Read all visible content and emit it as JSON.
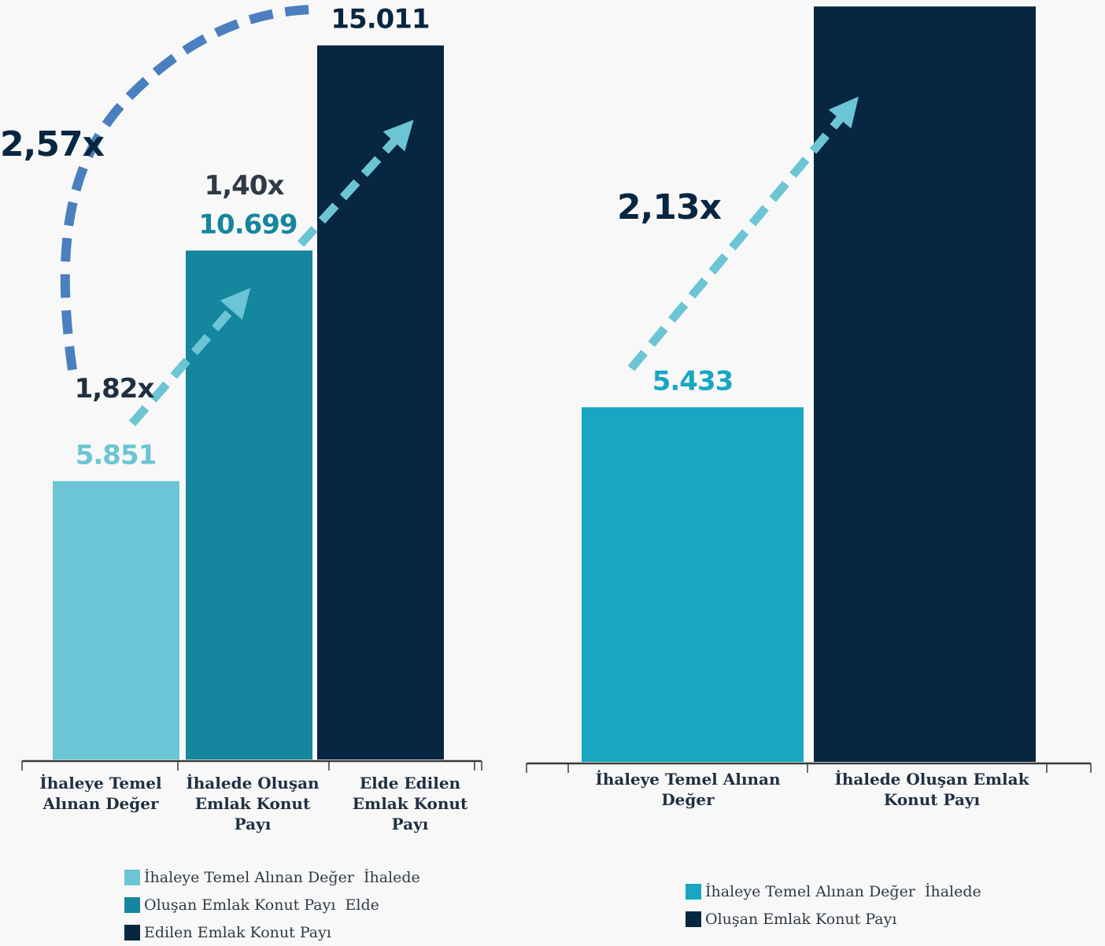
{
  "chart_data": [
    {
      "type": "bar",
      "categories": [
        [
          "İhaleye Temel",
          "Alınan Değer"
        ],
        [
          "İhalede Oluşan",
          "Emlak Konut",
          "Payı"
        ],
        [
          "Elde Edilen",
          "Emlak Konut",
          "Payı"
        ]
      ],
      "values": [
        5851,
        10699,
        15011
      ],
      "value_labels": [
        "5.851",
        "10.699",
        "15.011"
      ],
      "colors": [
        "#6bc5d4",
        "#14869e",
        "#072641"
      ],
      "label_colors": [
        "#6bc5d4",
        "#14869e",
        "#072641"
      ],
      "annotations": [
        {
          "text": "1,82x",
          "from": 0,
          "to": 1,
          "style": "dashed-arrow",
          "color": "#1f2f42"
        },
        {
          "text": "1,40x",
          "from": 1,
          "to": 2,
          "style": "dashed-arrow",
          "color": "#2f3a45"
        },
        {
          "text": "2,57x",
          "from": 0,
          "to": 2,
          "style": "dashed-arc",
          "color": "#072641"
        }
      ],
      "arrow_color": "#6bc5d4",
      "arc_color": "#4a7fc0",
      "legend": [
        "İhaleye Temel Alınan Değer  İhalede",
        "Oluşan Emlak Konut Payı  Elde",
        "Edilen Emlak Konut Payı"
      ],
      "ylim": [
        0,
        15800
      ],
      "xlabel": "",
      "ylabel": "",
      "title": "",
      "legend_position": "bottom-left",
      "grid": false
    },
    {
      "type": "bar",
      "categories": [
        [
          "İhaleye Temel  Alınan",
          "Değer"
        ],
        [
          "İhalede Oluşan  Emlak",
          "Konut Payı"
        ]
      ],
      "values": [
        5433,
        11573
      ],
      "value_labels": [
        "5.433",
        ""
      ],
      "colors": [
        "#17a7c2",
        "#072641"
      ],
      "label_colors": [
        "#17a7c2",
        "#072641"
      ],
      "annotations": [
        {
          "text": "2,13x",
          "from": 0,
          "to": 1,
          "style": "dashed-arrow",
          "color": "#072641"
        }
      ],
      "arrow_color": "#6bc5d4",
      "legend": [
        "İhaleye Temel Alınan Değer  İhalede",
        "Oluşan Emlak Konut Payı"
      ],
      "ylim": [
        0,
        11600
      ],
      "xlabel": "",
      "ylabel": "",
      "title": "",
      "legend_position": "bottom-center",
      "grid": false
    }
  ]
}
